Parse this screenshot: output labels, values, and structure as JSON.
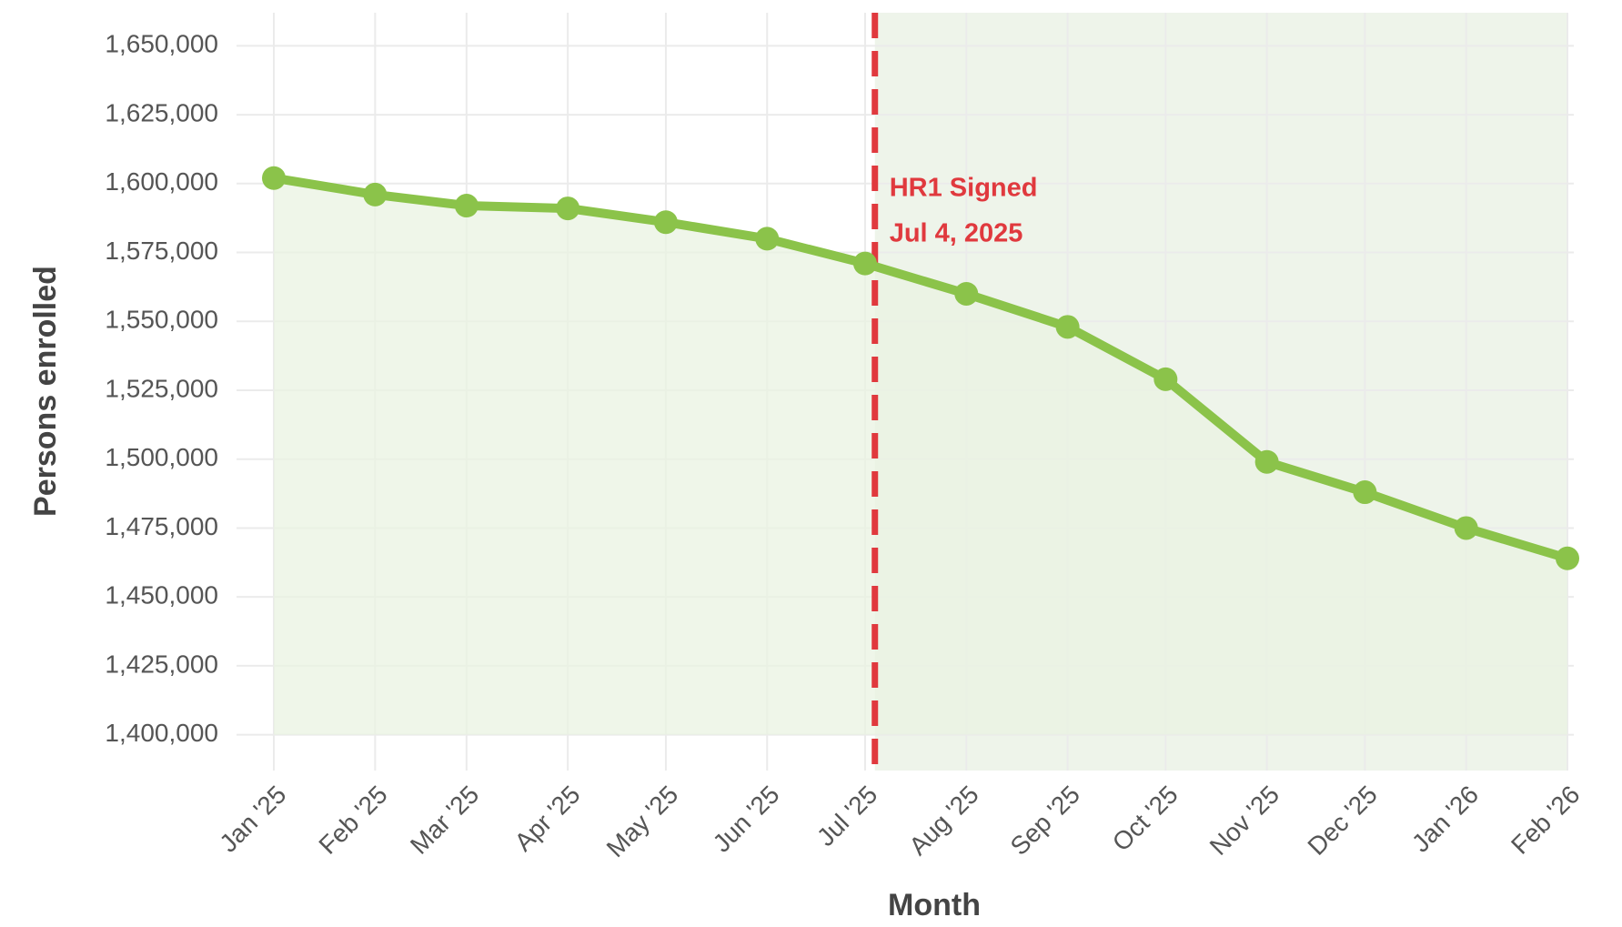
{
  "chart_data": {
    "type": "line",
    "x_label": "Month",
    "y_label": "Persons enrolled",
    "x": [
      "2025-01",
      "2025-02",
      "2025-03",
      "2025-04",
      "2025-05",
      "2025-06",
      "2025-07",
      "2025-08",
      "2025-09",
      "2025-10",
      "2025-11",
      "2025-12",
      "2026-01",
      "2026-02"
    ],
    "xticks": [
      {
        "value": "2025-01",
        "label": "Jan '25"
      },
      {
        "value": "2025-02",
        "label": "Feb '25"
      },
      {
        "value": "2025-03",
        "label": "Mar '25"
      },
      {
        "value": "2025-04",
        "label": "Apr '25"
      },
      {
        "value": "2025-05",
        "label": "May '25"
      },
      {
        "value": "2025-06",
        "label": "Jun '25"
      },
      {
        "value": "2025-07",
        "label": "Jul '25"
      },
      {
        "value": "2025-08",
        "label": "Aug '25"
      },
      {
        "value": "2025-09",
        "label": "Sep '25"
      },
      {
        "value": "2025-10",
        "label": "Oct '25"
      },
      {
        "value": "2025-11",
        "label": "Nov '25"
      },
      {
        "value": "2025-12",
        "label": "Dec '25"
      },
      {
        "value": "2026-01",
        "label": "Jan '26"
      },
      {
        "value": "2026-02",
        "label": "Feb '26"
      }
    ],
    "xlim": [
      "2025-01",
      "2026-02"
    ],
    "values": [
      1602000,
      1596000,
      1592000,
      1591000,
      1586000,
      1580000,
      1571000,
      1560000,
      1548000,
      1529000,
      1499000,
      1488000,
      1475000,
      1464000
    ],
    "color": "#8bc34a",
    "area_color": "#e9f3e1",
    "ylim": [
      1387000,
      1662000
    ],
    "area_base": 1400000,
    "yticks": [
      {
        "value": 1400000,
        "label": "1,400,000"
      },
      {
        "value": 1425000,
        "label": "1,425,000"
      },
      {
        "value": 1450000,
        "label": "1,450,000"
      },
      {
        "value": 1475000,
        "label": "1,475,000"
      },
      {
        "value": 1500000,
        "label": "1,500,000"
      },
      {
        "value": 1525000,
        "label": "1,525,000"
      },
      {
        "value": 1550000,
        "label": "1,550,000"
      },
      {
        "value": 1575000,
        "label": "1,575,000"
      },
      {
        "value": 1600000,
        "label": "1,600,000"
      },
      {
        "value": 1625000,
        "label": "1,625,000"
      },
      {
        "value": 1650000,
        "label": "1,650,000"
      }
    ],
    "grid": true,
    "event": {
      "x": "2025-07-04",
      "label": "HR1 Signed",
      "date_label": "Jul 4, 2025",
      "color": "#e0393e",
      "shade_color": "#eef4ea"
    }
  }
}
